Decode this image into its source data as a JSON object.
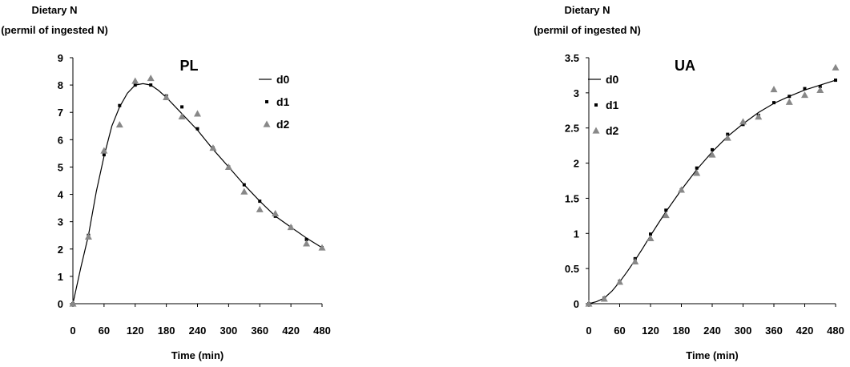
{
  "chart_data": [
    {
      "type": "line",
      "title": "PL",
      "ylabel_lines": [
        "Dietary N",
        "(permil of ingested N)"
      ],
      "xlabel": "Time (min)",
      "xlim": [
        0,
        480
      ],
      "ylim": [
        0,
        9
      ],
      "xticks": [
        "0",
        "60",
        "120",
        "180",
        "240",
        "300",
        "360",
        "420",
        "480"
      ],
      "yticks": [
        "0",
        "1",
        "2",
        "3",
        "4",
        "5",
        "6",
        "7",
        "8",
        "9"
      ],
      "legend": "top-right",
      "series": [
        {
          "name": "d0",
          "kind": "line",
          "color": "#000000",
          "x": [
            0,
            15,
            30,
            45,
            60,
            75,
            90,
            105,
            120,
            135,
            150,
            165,
            180,
            210,
            240,
            270,
            300,
            330,
            360,
            390,
            420,
            450,
            480
          ],
          "y": [
            0,
            1.3,
            2.5,
            4.1,
            5.4,
            6.5,
            7.2,
            7.7,
            8.0,
            8.05,
            8.0,
            7.8,
            7.55,
            6.95,
            6.35,
            5.65,
            5.0,
            4.35,
            3.75,
            3.2,
            2.8,
            2.4,
            2.05
          ]
        },
        {
          "name": "d1",
          "kind": "square",
          "color": "#000000",
          "x": [
            0,
            30,
            60,
            90,
            120,
            150,
            180,
            210,
            240,
            270,
            300,
            330,
            360,
            390,
            420,
            450,
            480
          ],
          "y": [
            0,
            2.5,
            5.45,
            7.25,
            8.0,
            8.0,
            7.6,
            7.2,
            6.4,
            5.7,
            5.0,
            4.35,
            3.75,
            3.2,
            2.8,
            2.35,
            2.05
          ]
        },
        {
          "name": "d2",
          "kind": "triangle",
          "color": "#888888",
          "x": [
            0,
            30,
            60,
            90,
            120,
            150,
            180,
            210,
            240,
            270,
            300,
            330,
            360,
            390,
            420,
            450,
            480
          ],
          "y": [
            0,
            2.45,
            5.6,
            6.55,
            8.15,
            8.25,
            7.55,
            6.85,
            6.95,
            5.7,
            5.0,
            4.1,
            3.45,
            3.3,
            2.8,
            2.2,
            2.05
          ]
        }
      ]
    },
    {
      "type": "line",
      "title": "UA",
      "ylabel_lines": [
        "Dietary N",
        "(permil of ingested N)"
      ],
      "xlabel": "Time (min)",
      "xlim": [
        0,
        480
      ],
      "ylim": [
        0,
        3.5
      ],
      "xticks": [
        "0",
        "60",
        "120",
        "180",
        "240",
        "300",
        "360",
        "420",
        "480"
      ],
      "yticks": [
        "0",
        "0.5",
        "1",
        "1.5",
        "2",
        "2.5",
        "3",
        "3.5"
      ],
      "legend": "top-left",
      "series": [
        {
          "name": "d0",
          "kind": "line",
          "color": "#000000",
          "x": [
            0,
            15,
            30,
            45,
            60,
            75,
            90,
            105,
            120,
            135,
            150,
            180,
            210,
            240,
            270,
            300,
            330,
            360,
            390,
            420,
            450,
            480
          ],
          "y": [
            0,
            0.03,
            0.08,
            0.18,
            0.31,
            0.46,
            0.62,
            0.79,
            0.97,
            1.14,
            1.31,
            1.62,
            1.91,
            2.16,
            2.38,
            2.56,
            2.72,
            2.85,
            2.95,
            3.04,
            3.11,
            3.18
          ]
        },
        {
          "name": "d1",
          "kind": "square",
          "color": "#000000",
          "x": [
            0,
            30,
            60,
            90,
            120,
            150,
            180,
            210,
            240,
            270,
            300,
            330,
            360,
            390,
            420,
            450,
            480
          ],
          "y": [
            0,
            0.08,
            0.32,
            0.64,
            0.99,
            1.33,
            1.62,
            1.93,
            2.19,
            2.41,
            2.55,
            2.68,
            2.86,
            2.95,
            3.06,
            3.09,
            3.18
          ]
        },
        {
          "name": "d2",
          "kind": "triangle",
          "color": "#888888",
          "x": [
            0,
            30,
            60,
            90,
            120,
            150,
            180,
            210,
            240,
            270,
            300,
            330,
            360,
            390,
            420,
            450,
            480
          ],
          "y": [
            0,
            0.07,
            0.31,
            0.6,
            0.93,
            1.26,
            1.62,
            1.86,
            2.12,
            2.36,
            2.59,
            2.66,
            3.05,
            2.87,
            2.97,
            3.04,
            3.36
          ]
        }
      ]
    }
  ]
}
